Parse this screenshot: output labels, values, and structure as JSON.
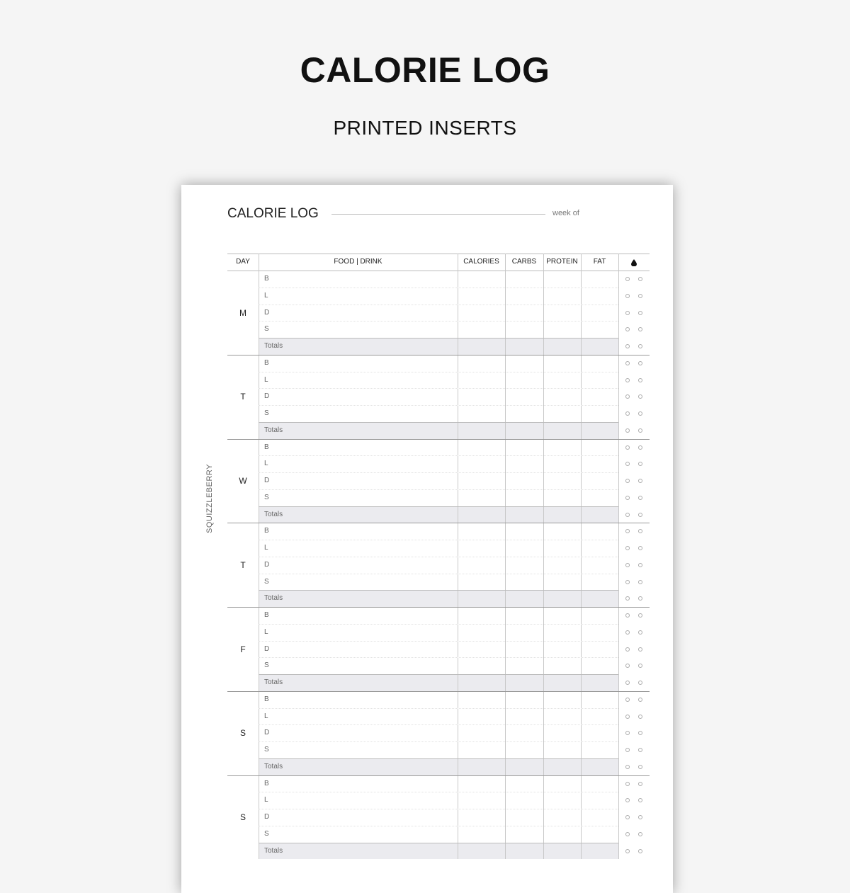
{
  "header": {
    "title": "CALORIE LOG",
    "subtitle": "PRINTED INSERTS"
  },
  "sheet": {
    "title": "CALORIE LOG",
    "week_of_label": "week of",
    "brand": "SQUIZZLEBERRY"
  },
  "table": {
    "columns": [
      "DAY",
      "FOOD | DRINK",
      "CALORIES",
      "CARBS",
      "PROTEIN",
      "FAT"
    ],
    "water_icon": "water-drop-icon",
    "days": [
      "M",
      "T",
      "W",
      "T",
      "F",
      "S",
      "S"
    ],
    "meals": [
      "B",
      "L",
      "D",
      "S"
    ],
    "totals_label": "Totals",
    "water_circles_per_row": 2
  }
}
